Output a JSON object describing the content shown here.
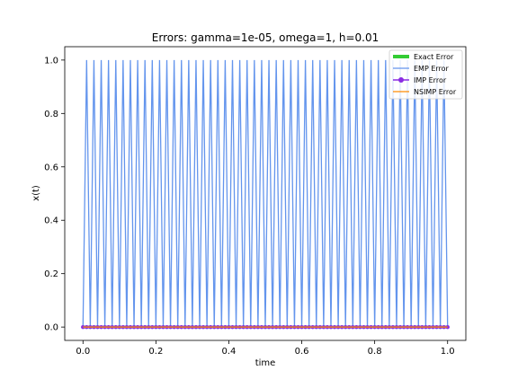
{
  "chart_data": {
    "type": "line",
    "title": "Errors: gamma=1e-05, omega=1, h=0.01",
    "xlabel": "time",
    "ylabel": "x(t)",
    "xlim": [
      -0.05,
      1.05
    ],
    "ylim": [
      -0.05,
      1.05
    ],
    "xticks": [
      "0.0",
      "0.2",
      "0.4",
      "0.6",
      "0.8",
      "1.0"
    ],
    "yticks": [
      "0.0",
      "0.2",
      "0.4",
      "0.6",
      "0.8",
      "1.0"
    ],
    "grid": false,
    "legend_position": "top-right",
    "emp_oscillation": {
      "x_start": 0.0,
      "x_end": 1.0,
      "step": 0.01,
      "low": 0.0,
      "high": 1.0
    },
    "series": [
      {
        "name": "Exact Error",
        "color": "#33cc33",
        "style": "thick-line",
        "y_constant": 0.0
      },
      {
        "name": "EMP Error",
        "color": "#6495ed",
        "style": "line",
        "pattern": "alternating 0 and 1 each step"
      },
      {
        "name": "IMP Error",
        "color": "#8a2be2",
        "style": "line-marker",
        "y_constant": 0.0
      },
      {
        "name": "NSIMP Error",
        "color": "#ff8c00",
        "style": "line",
        "y_constant": 0.0
      }
    ]
  }
}
